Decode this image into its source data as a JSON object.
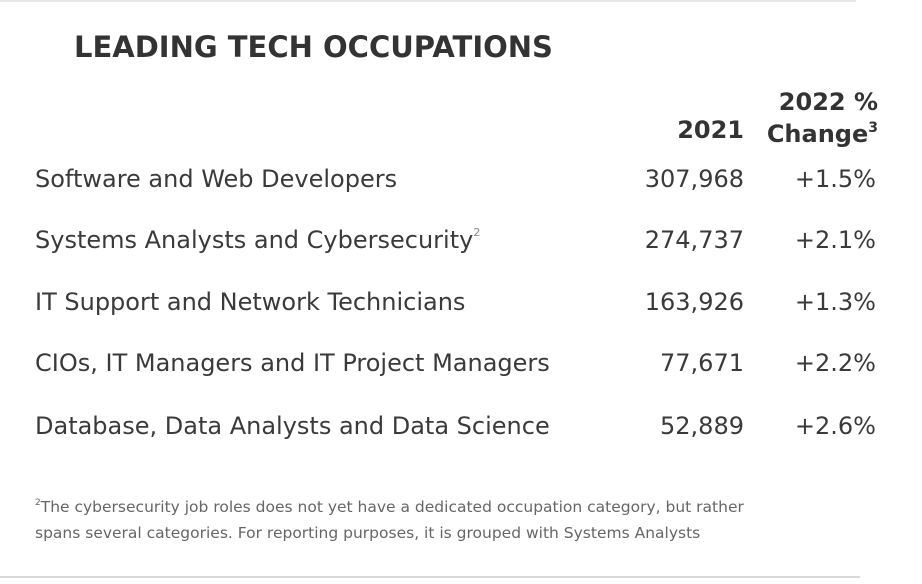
{
  "title": "LEADING TECH OCCUPATIONS",
  "columns": {
    "year": "2021",
    "change_line1": "2022 %",
    "change_line2": "Change",
    "change_sup": "3"
  },
  "rows": [
    {
      "label": "Software and Web Developers",
      "sup": "",
      "value_2021": "307,968",
      "change_2022": "+1.5%"
    },
    {
      "label": "Systems Analysts and Cybersecurity",
      "sup": "2",
      "value_2021": "274,737",
      "change_2022": "+2.1%"
    },
    {
      "label": "IT Support and Network Technicians",
      "sup": "",
      "value_2021": "163,926",
      "change_2022": "+1.3%"
    },
    {
      "label": "CIOs, IT Managers and IT Project Managers",
      "sup": "",
      "value_2021": "77,671",
      "change_2022": "+2.2%"
    },
    {
      "label": "Database, Data Analysts and Data Science",
      "sup": "",
      "value_2021": "52,889",
      "change_2022": "+2.6%"
    }
  ],
  "footnote": {
    "marker": "2",
    "line1": "The cybersecurity job roles does not yet have a dedicated occupation category, but rather",
    "line2": "spans several categories. For reporting purposes, it is grouped with Systems Analysts"
  }
}
